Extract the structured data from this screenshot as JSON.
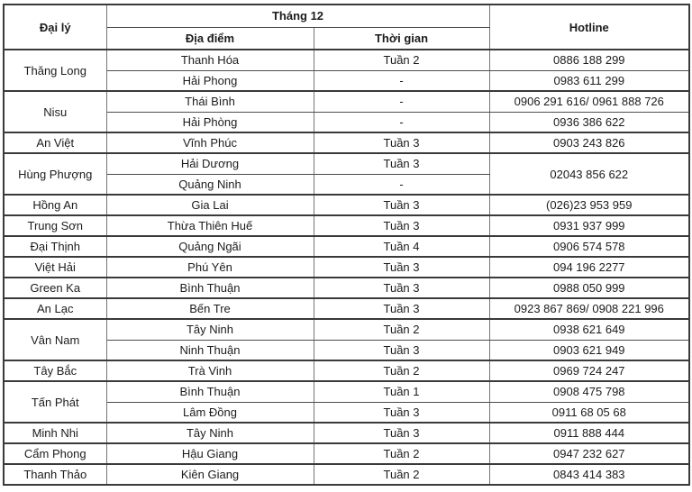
{
  "header": {
    "agent": "Đại lý",
    "month": "Tháng 12",
    "location": "Địa điểm",
    "time": "Thời gian",
    "hotline": "Hotline"
  },
  "groups": [
    {
      "agent": "Thăng Long",
      "rows": [
        {
          "location": "Thanh Hóa",
          "time": "Tuần 2",
          "hotline": "0886 188 299"
        },
        {
          "location": "Hải Phong",
          "time": "-",
          "hotline": "0983 611 299"
        }
      ]
    },
    {
      "agent": "Nisu",
      "rows": [
        {
          "location": "Thái Bình",
          "time": "-",
          "hotline": "0906 291 616/ 0961 888 726"
        },
        {
          "location": "Hải Phòng",
          "time": "-",
          "hotline": "0936 386 622"
        }
      ]
    },
    {
      "agent": "An Việt",
      "rows": [
        {
          "location": "Vĩnh Phúc",
          "time": "Tuần 3",
          "hotline": "0903 243 826"
        }
      ]
    },
    {
      "agent": "Hùng Phượng",
      "hotline": "02043 856 622",
      "rows": [
        {
          "location": "Hải Dương",
          "time": "Tuần 3"
        },
        {
          "location": "Quảng Ninh",
          "time": "-"
        }
      ]
    },
    {
      "agent": "Hồng An",
      "rows": [
        {
          "location": "Gia Lai",
          "time": "Tuần 3",
          "hotline": "(026)23 953 959"
        }
      ]
    },
    {
      "agent": "Trung Sơn",
      "rows": [
        {
          "location": "Thừa Thiên Huế",
          "time": "Tuần 3",
          "hotline": "0931 937 999"
        }
      ]
    },
    {
      "agent": "Đại Thịnh",
      "rows": [
        {
          "location": "Quảng Ngãi",
          "time": "Tuần 4",
          "hotline": "0906 574 578"
        }
      ]
    },
    {
      "agent": "Việt Hải",
      "rows": [
        {
          "location": "Phú Yên",
          "time": "Tuần 3",
          "hotline": "094 196 2277"
        }
      ]
    },
    {
      "agent": "Green Ka",
      "rows": [
        {
          "location": "Bình Thuận",
          "time": "Tuần 3",
          "hotline": "0988 050 999"
        }
      ]
    },
    {
      "agent": "An Lạc",
      "rows": [
        {
          "location": "Bến Tre",
          "time": "Tuần 3",
          "hotline": "0923 867 869/ 0908 221 996"
        }
      ]
    },
    {
      "agent": "Vân Nam",
      "rows": [
        {
          "location": "Tây Ninh",
          "time": "Tuần 2",
          "hotline": "0938 621 649"
        },
        {
          "location": "Ninh Thuận",
          "time": "Tuần 3",
          "hotline": "0903 621 949"
        }
      ]
    },
    {
      "agent": "Tây Bắc",
      "rows": [
        {
          "location": "Trà Vinh",
          "time": "Tuần 2",
          "hotline": "0969 724 247"
        }
      ]
    },
    {
      "agent": "Tấn Phát",
      "rows": [
        {
          "location": "Bình Thuận",
          "time": "Tuần 1",
          "hotline": "0908 475 798"
        },
        {
          "location": "Lâm Đồng",
          "time": "Tuần 3",
          "hotline": "0911 68 05 68"
        }
      ]
    },
    {
      "agent": "Minh Nhi",
      "rows": [
        {
          "location": "Tây Ninh",
          "time": "Tuần 3",
          "hotline": "0911 888 444"
        }
      ]
    },
    {
      "agent": "Cẩm Phong",
      "rows": [
        {
          "location": "Hậu Giang",
          "time": "Tuần 2",
          "hotline": "0947 232 627"
        }
      ]
    },
    {
      "agent": "Thanh Thảo",
      "rows": [
        {
          "location": "Kiên Giang",
          "time": "Tuần 2",
          "hotline": "0843 414 383"
        }
      ]
    }
  ]
}
